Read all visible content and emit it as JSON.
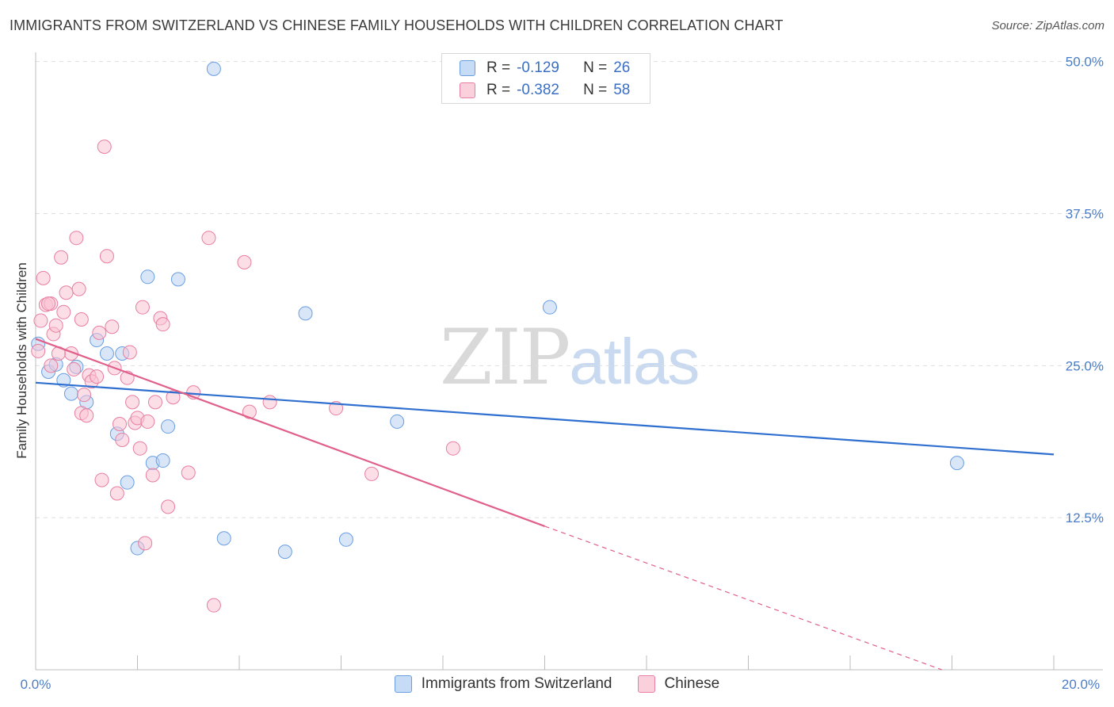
{
  "header": {
    "title": "IMMIGRANTS FROM SWITZERLAND VS CHINESE FAMILY HOUSEHOLDS WITH CHILDREN CORRELATION CHART",
    "source": "Source: ZipAtlas.com"
  },
  "watermark": {
    "zip": "ZIP",
    "atlas": "atlas"
  },
  "legend": {
    "rows": [
      {
        "r_label": "R =",
        "r_value": "-0.129",
        "n_label": "N =",
        "n_value": "26",
        "color": "#a9c8f0"
      },
      {
        "r_label": "R =",
        "r_value": "-0.382",
        "n_label": "N =",
        "n_value": "58",
        "color": "#f7b6c9"
      }
    ]
  },
  "bottom_legend": {
    "series1": "Immigrants from Switzerland",
    "series2": "Chinese"
  },
  "chart_data": {
    "type": "scatter",
    "title": "IMMIGRANTS FROM SWITZERLAND VS CHINESE FAMILY HOUSEHOLDS WITH CHILDREN CORRELATION CHART",
    "xlabel": "",
    "ylabel": "Family Households with Children",
    "xlim": [
      0,
      20
    ],
    "ylim": [
      0,
      50.5
    ],
    "x_tick_labels": [
      "0.0%",
      "20.0%"
    ],
    "y_ticks": [
      12.5,
      25.0,
      37.5,
      50.0
    ],
    "y_tick_labels": [
      "12.5%",
      "25.0%",
      "37.5%",
      "50.0%"
    ],
    "grid": true,
    "series": [
      {
        "name": "Immigrants from Switzerland",
        "color": "#6b9ee0",
        "fill": "#b8d2f3",
        "points": [
          [
            0.05,
            26.8
          ],
          [
            0.25,
            24.5
          ],
          [
            0.4,
            25.1
          ],
          [
            0.55,
            23.8
          ],
          [
            0.7,
            22.7
          ],
          [
            0.8,
            24.9
          ],
          [
            1.0,
            22.0
          ],
          [
            1.2,
            27.1
          ],
          [
            1.4,
            26.0
          ],
          [
            1.6,
            19.4
          ],
          [
            1.8,
            15.4
          ],
          [
            2.0,
            10.0
          ],
          [
            2.2,
            32.3
          ],
          [
            2.3,
            17.0
          ],
          [
            2.5,
            17.2
          ],
          [
            2.6,
            20.0
          ],
          [
            2.8,
            32.1
          ],
          [
            3.5,
            49.4
          ],
          [
            3.7,
            10.8
          ],
          [
            4.9,
            9.7
          ],
          [
            5.3,
            29.3
          ],
          [
            6.1,
            10.7
          ],
          [
            7.1,
            20.4
          ],
          [
            10.1,
            29.8
          ],
          [
            18.1,
            17.0
          ],
          [
            1.7,
            26.0
          ]
        ],
        "trend": {
          "x": [
            0,
            20
          ],
          "y": [
            23.6,
            17.7
          ],
          "style": "solid"
        }
      },
      {
        "name": "Chinese",
        "color": "#e87ea0",
        "fill": "#f9c3d3",
        "points": [
          [
            0.05,
            26.2
          ],
          [
            0.1,
            28.7
          ],
          [
            0.15,
            32.2
          ],
          [
            0.2,
            30.0
          ],
          [
            0.3,
            30.1
          ],
          [
            0.35,
            27.6
          ],
          [
            0.4,
            28.3
          ],
          [
            0.5,
            33.9
          ],
          [
            0.55,
            29.4
          ],
          [
            0.6,
            31.0
          ],
          [
            0.7,
            26.0
          ],
          [
            0.75,
            24.7
          ],
          [
            0.8,
            35.5
          ],
          [
            0.85,
            31.3
          ],
          [
            0.9,
            28.8
          ],
          [
            0.9,
            21.1
          ],
          [
            0.95,
            22.6
          ],
          [
            1.0,
            20.9
          ],
          [
            1.05,
            24.2
          ],
          [
            1.1,
            23.7
          ],
          [
            1.2,
            24.1
          ],
          [
            1.25,
            27.7
          ],
          [
            1.3,
            15.6
          ],
          [
            1.35,
            43.0
          ],
          [
            1.4,
            34.0
          ],
          [
            1.5,
            28.2
          ],
          [
            1.55,
            24.8
          ],
          [
            1.6,
            14.5
          ],
          [
            1.65,
            20.2
          ],
          [
            1.7,
            18.9
          ],
          [
            1.8,
            24.0
          ],
          [
            1.85,
            26.1
          ],
          [
            1.9,
            22.0
          ],
          [
            1.95,
            20.3
          ],
          [
            2.0,
            20.7
          ],
          [
            2.05,
            18.2
          ],
          [
            2.1,
            29.8
          ],
          [
            2.15,
            10.4
          ],
          [
            2.2,
            20.4
          ],
          [
            2.3,
            16.0
          ],
          [
            2.35,
            22.0
          ],
          [
            2.45,
            28.9
          ],
          [
            2.5,
            28.4
          ],
          [
            2.6,
            13.4
          ],
          [
            2.7,
            22.4
          ],
          [
            3.0,
            16.2
          ],
          [
            3.1,
            22.8
          ],
          [
            3.4,
            35.5
          ],
          [
            3.5,
            5.3
          ],
          [
            4.1,
            33.5
          ],
          [
            4.2,
            21.2
          ],
          [
            4.6,
            22.0
          ],
          [
            5.9,
            21.5
          ],
          [
            6.6,
            16.1
          ],
          [
            8.2,
            18.2
          ],
          [
            0.25,
            30.1
          ],
          [
            0.3,
            25.0
          ],
          [
            0.45,
            26.0
          ]
        ],
        "trend": {
          "x": [
            0,
            10
          ],
          "y": [
            27.2,
            11.8
          ],
          "style": "solid",
          "extension": {
            "x": [
              10,
              17.8
            ],
            "y": [
              11.8,
              0.0
            ],
            "style": "dashed"
          }
        }
      }
    ]
  }
}
